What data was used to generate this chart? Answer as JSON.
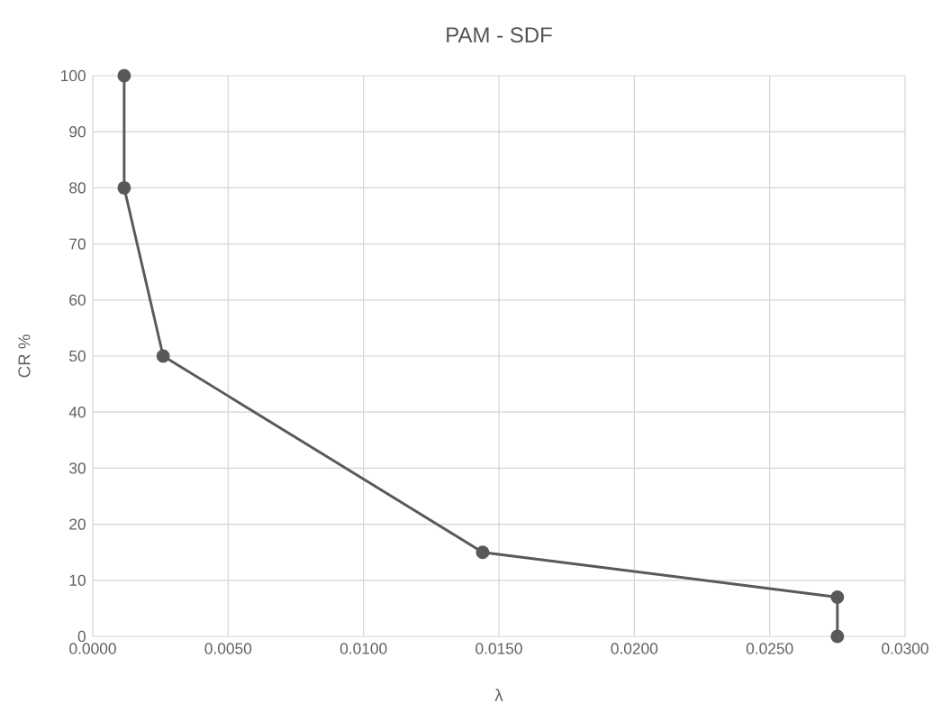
{
  "chart_data": {
    "type": "line",
    "title": "PAM - SDF",
    "xlabel": "λ",
    "ylabel": "CR %",
    "x": [
      0.00116,
      0.00116,
      0.0026,
      0.0144,
      0.0275,
      0.0275
    ],
    "series": [
      {
        "color": "#595959",
        "values": [
          100,
          80,
          50,
          15,
          7,
          0
        ]
      }
    ],
    "xlim": [
      0,
      0.03
    ],
    "ylim": [
      0,
      100
    ],
    "xticks": [
      {
        "value": 0,
        "label": "0.0000"
      },
      {
        "value": 0.005,
        "label": "0.0050"
      },
      {
        "value": 0.01,
        "label": "0.0100"
      },
      {
        "value": 0.015,
        "label": "0.0150"
      },
      {
        "value": 0.02,
        "label": "0.0200"
      },
      {
        "value": 0.025,
        "label": "0.0250"
      },
      {
        "value": 0.03,
        "label": "0.0300"
      }
    ],
    "yticks": [
      0,
      10,
      20,
      30,
      40,
      50,
      60,
      70,
      80,
      90,
      100
    ],
    "grid": true,
    "marker": "circle",
    "line_style": "solid"
  }
}
